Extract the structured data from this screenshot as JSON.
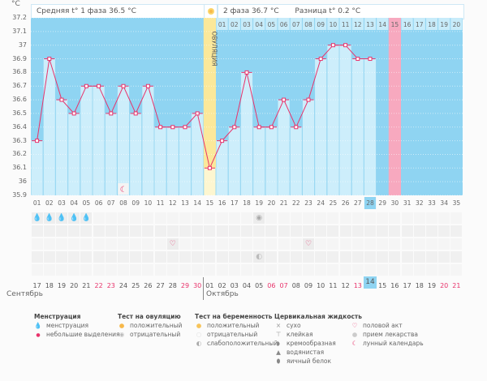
{
  "chart_data": {
    "type": "line",
    "title": "",
    "ylabel": "°C",
    "xlabel": "",
    "ylim": [
      35.9,
      37.2
    ],
    "yticks": [
      35.9,
      36,
      36.1,
      36.2,
      36.3,
      36.4,
      36.5,
      36.6,
      36.7,
      36.8,
      36.9,
      37,
      37.1,
      37.2
    ],
    "ytick_labels": [
      "35.9",
      "36",
      "36.1",
      "36.2",
      "36.3",
      "36.4",
      "36.5",
      "36.6",
      "36.7",
      "36.8",
      "36.9",
      "37",
      "37.1",
      "37.2"
    ],
    "cycle_days": [
      "01",
      "02",
      "03",
      "04",
      "05",
      "06",
      "07",
      "08",
      "09",
      "10",
      "11",
      "12",
      "13",
      "14",
      "15",
      "16",
      "17",
      "18",
      "19",
      "20",
      "21",
      "22",
      "23",
      "24",
      "25",
      "26",
      "27",
      "28",
      "29",
      "30",
      "31",
      "32",
      "33",
      "34",
      "35"
    ],
    "grid": true,
    "series": [
      {
        "name": "basal temperature",
        "color": "#e8336b",
        "values": [
          36.3,
          36.9,
          36.6,
          36.5,
          36.7,
          36.7,
          36.5,
          36.7,
          36.5,
          36.7,
          36.4,
          36.4,
          36.4,
          36.5,
          36.1,
          36.3,
          36.4,
          36.8,
          36.4,
          36.4,
          36.6,
          36.4,
          36.6,
          36.9,
          37.0,
          37.0,
          36.9,
          36.9
        ]
      }
    ],
    "ovulation_day": 15,
    "current_day": 28,
    "expected_period_day": 30,
    "phase2_days": [
      "01",
      "02",
      "03",
      "04",
      "05",
      "06",
      "07",
      "08",
      "09",
      "10",
      "11",
      "12",
      "13",
      "14",
      "15",
      "16",
      "17",
      "18",
      "19",
      "20"
    ],
    "phase2_highlight_day": "15",
    "annotations": {
      "ovulation_label": "ОВУЛЯЦИЯ",
      "phase1_avg": "Средняя t° 1 фаза 36.5 °C",
      "phase2_avg": "2 фаза 36.7 °C",
      "difference": "Разница t° 0.2 °C"
    }
  },
  "header": {
    "unit": "°C",
    "phase1": "Средняя t° 1 фаза 36.5 °C",
    "phase2": "2 фаза 36.7 °C",
    "difference": "Разница t° 0.2 °C"
  },
  "markers": {
    "moon_day": 8,
    "menstruation_days": [
      1,
      2,
      3,
      4,
      5
    ],
    "ovulation_test_negative_day": 19,
    "intercourse_days": [
      12,
      23
    ],
    "medication_day": 19
  },
  "calendar": {
    "dates": [
      "17",
      "18",
      "19",
      "20",
      "21",
      "22",
      "23",
      "24",
      "25",
      "26",
      "27",
      "28",
      "29",
      "30",
      "01",
      "02",
      "03",
      "04",
      "05",
      "06",
      "07",
      "08",
      "09",
      "10",
      "11",
      "12",
      "13",
      "14",
      "15",
      "16",
      "17",
      "18",
      "19",
      "20",
      "21"
    ],
    "weekend_indices": [
      5,
      6,
      12,
      13,
      19,
      20,
      26,
      33,
      34
    ],
    "today_index": 27,
    "months": [
      "Сентябрь",
      "Октябрь"
    ]
  },
  "legend": {
    "menstruation": {
      "title": "Менструация",
      "items": [
        "менструация",
        "небольшие выделения"
      ]
    },
    "ovulation_test": {
      "title": "Тест на овуляцию",
      "items": [
        "положительный",
        "отрицательный"
      ]
    },
    "pregnancy_test": {
      "title": "Тест на беременность",
      "items": [
        "положительный",
        "отрицательный",
        "слабоположительный"
      ]
    },
    "cervical_fluid": {
      "title": "Цервикальная жидкость",
      "items": [
        "сухо",
        "клейкая",
        "кремообразная",
        "водянистая",
        "яичный белок"
      ]
    },
    "other": {
      "items": [
        "половой акт",
        "прием лекарства",
        "лунный календарь"
      ]
    }
  },
  "colors": {
    "plot_bg": "#8fd4f2",
    "bar": "#cdeefb",
    "line": "#e8336b",
    "ovulation": "#fbe89a",
    "period": "#f7a9bf",
    "today": "#8fd4f2"
  }
}
